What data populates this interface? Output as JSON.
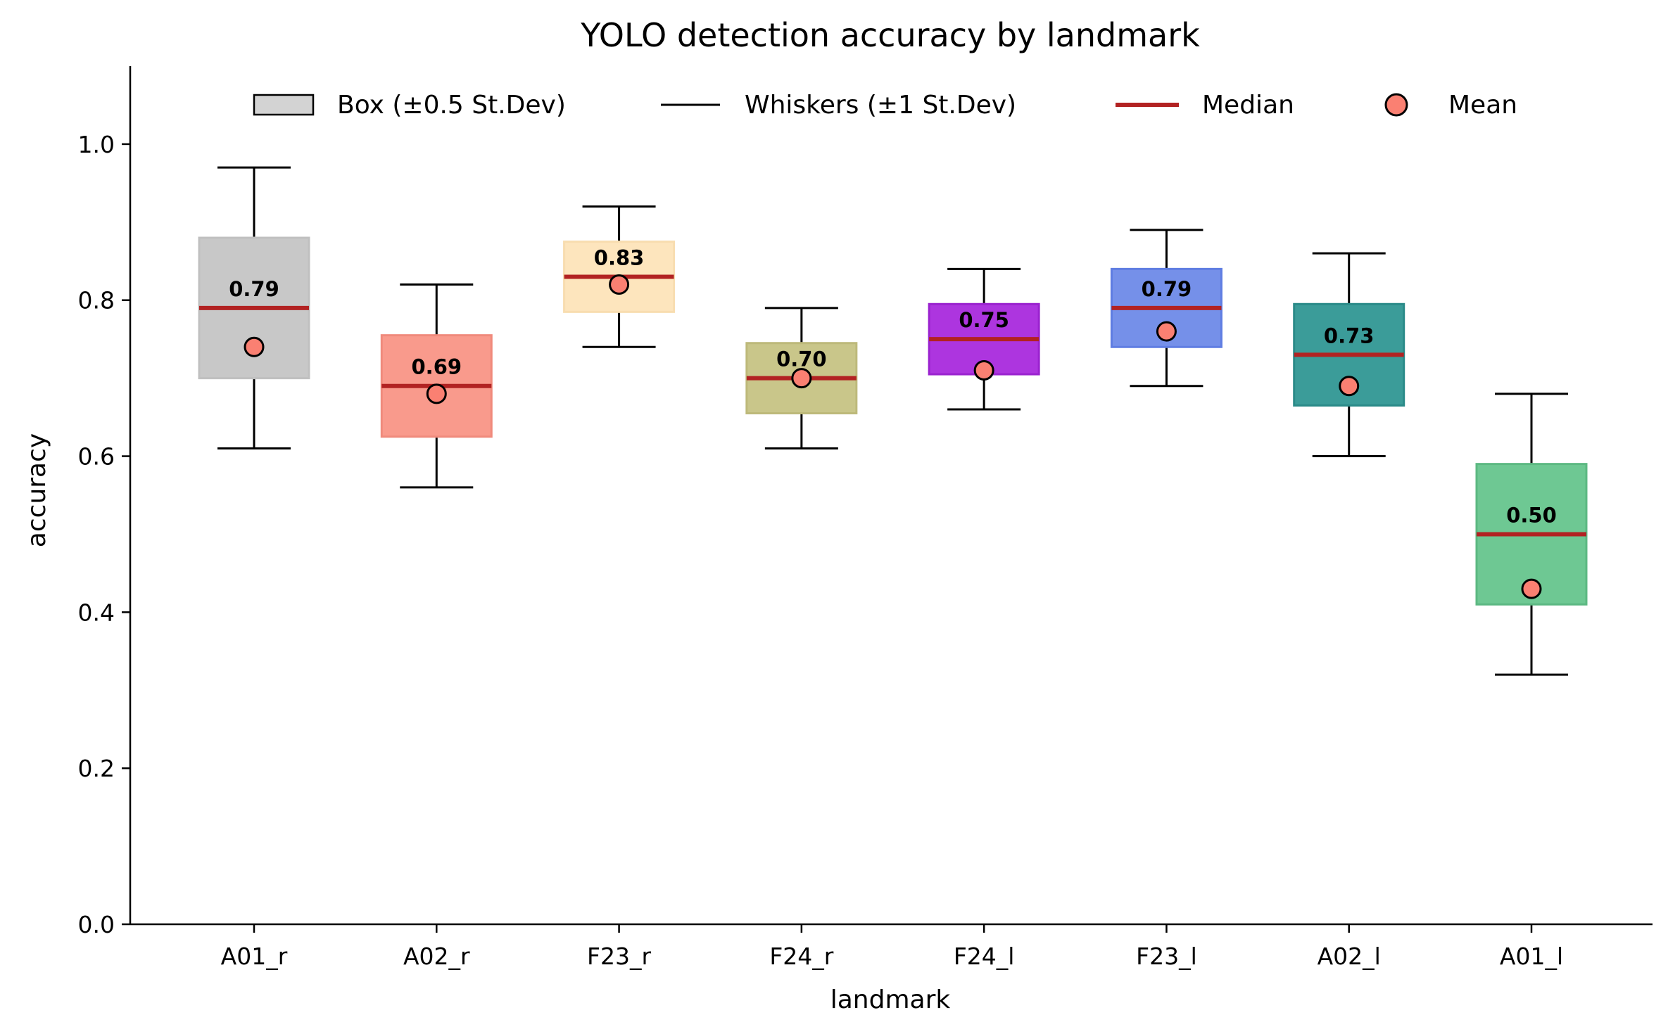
{
  "chart_data": {
    "type": "box",
    "title": "YOLO detection accuracy by landmark",
    "xlabel": "landmark",
    "ylabel": "accuracy",
    "ylim": [
      0,
      1.1
    ],
    "yticks": [
      0.0,
      0.2,
      0.4,
      0.6,
      0.8,
      1.0
    ],
    "ytick_labels": [
      "0.0",
      "0.2",
      "0.4",
      "0.6",
      "0.8",
      "1.0"
    ],
    "categories": [
      "A01_r",
      "A02_r",
      "F23_r",
      "F24_r",
      "F24_l",
      "F23_l",
      "A02_l",
      "A01_l"
    ],
    "series": [
      {
        "name": "A01_r",
        "median": 0.79,
        "median_label": "0.79",
        "mean": 0.74,
        "box_low": 0.7,
        "box_high": 0.88,
        "whisker_low": 0.61,
        "whisker_high": 0.97,
        "color": "#c8c8c8",
        "edge": "#c0c0c0"
      },
      {
        "name": "A02_r",
        "median": 0.69,
        "median_label": "0.69",
        "mean": 0.68,
        "box_low": 0.625,
        "box_high": 0.755,
        "whisker_low": 0.56,
        "whisker_high": 0.82,
        "color": "#f99a8c",
        "edge": "#f08a7c"
      },
      {
        "name": "F23_r",
        "median": 0.83,
        "median_label": "0.83",
        "mean": 0.82,
        "box_low": 0.785,
        "box_high": 0.875,
        "whisker_low": 0.74,
        "whisker_high": 0.92,
        "color": "#fde5bd",
        "edge": "#f8ddb0"
      },
      {
        "name": "F24_r",
        "median": 0.7,
        "median_label": "0.70",
        "mean": 0.7,
        "box_low": 0.655,
        "box_high": 0.745,
        "whisker_low": 0.61,
        "whisker_high": 0.79,
        "color": "#c9c68a",
        "edge": "#bdb97a"
      },
      {
        "name": "F24_l",
        "median": 0.75,
        "median_label": "0.75",
        "mean": 0.71,
        "box_low": 0.705,
        "box_high": 0.795,
        "whisker_low": 0.66,
        "whisker_high": 0.84,
        "color": "#ad35df",
        "edge": "#9a22cf"
      },
      {
        "name": "F23_l",
        "median": 0.79,
        "median_label": "0.79",
        "mean": 0.76,
        "box_low": 0.74,
        "box_high": 0.84,
        "whisker_low": 0.69,
        "whisker_high": 0.89,
        "color": "#7590e9",
        "edge": "#5f7de2"
      },
      {
        "name": "A02_l",
        "median": 0.73,
        "median_label": "0.73",
        "mean": 0.69,
        "box_low": 0.665,
        "box_high": 0.795,
        "whisker_low": 0.6,
        "whisker_high": 0.86,
        "color": "#3b9c99",
        "edge": "#2a8a88"
      },
      {
        "name": "A01_l",
        "median": 0.5,
        "median_label": "0.50",
        "mean": 0.43,
        "box_low": 0.41,
        "box_high": 0.59,
        "whisker_low": 0.32,
        "whisker_high": 0.68,
        "color": "#6ec893",
        "edge": "#5cb882"
      }
    ],
    "legend": {
      "position": "top",
      "entries": [
        {
          "key": "box",
          "label": "Box (±0.5 St.Dev)"
        },
        {
          "key": "whisker",
          "label": "Whiskers (±1 St.Dev)"
        },
        {
          "key": "median",
          "label": "Median"
        },
        {
          "key": "mean",
          "label": "Mean"
        }
      ]
    },
    "colors": {
      "median_line": "#b22222",
      "mean_marker": "#fa8072",
      "legend_box": "#d3d3d3"
    }
  }
}
